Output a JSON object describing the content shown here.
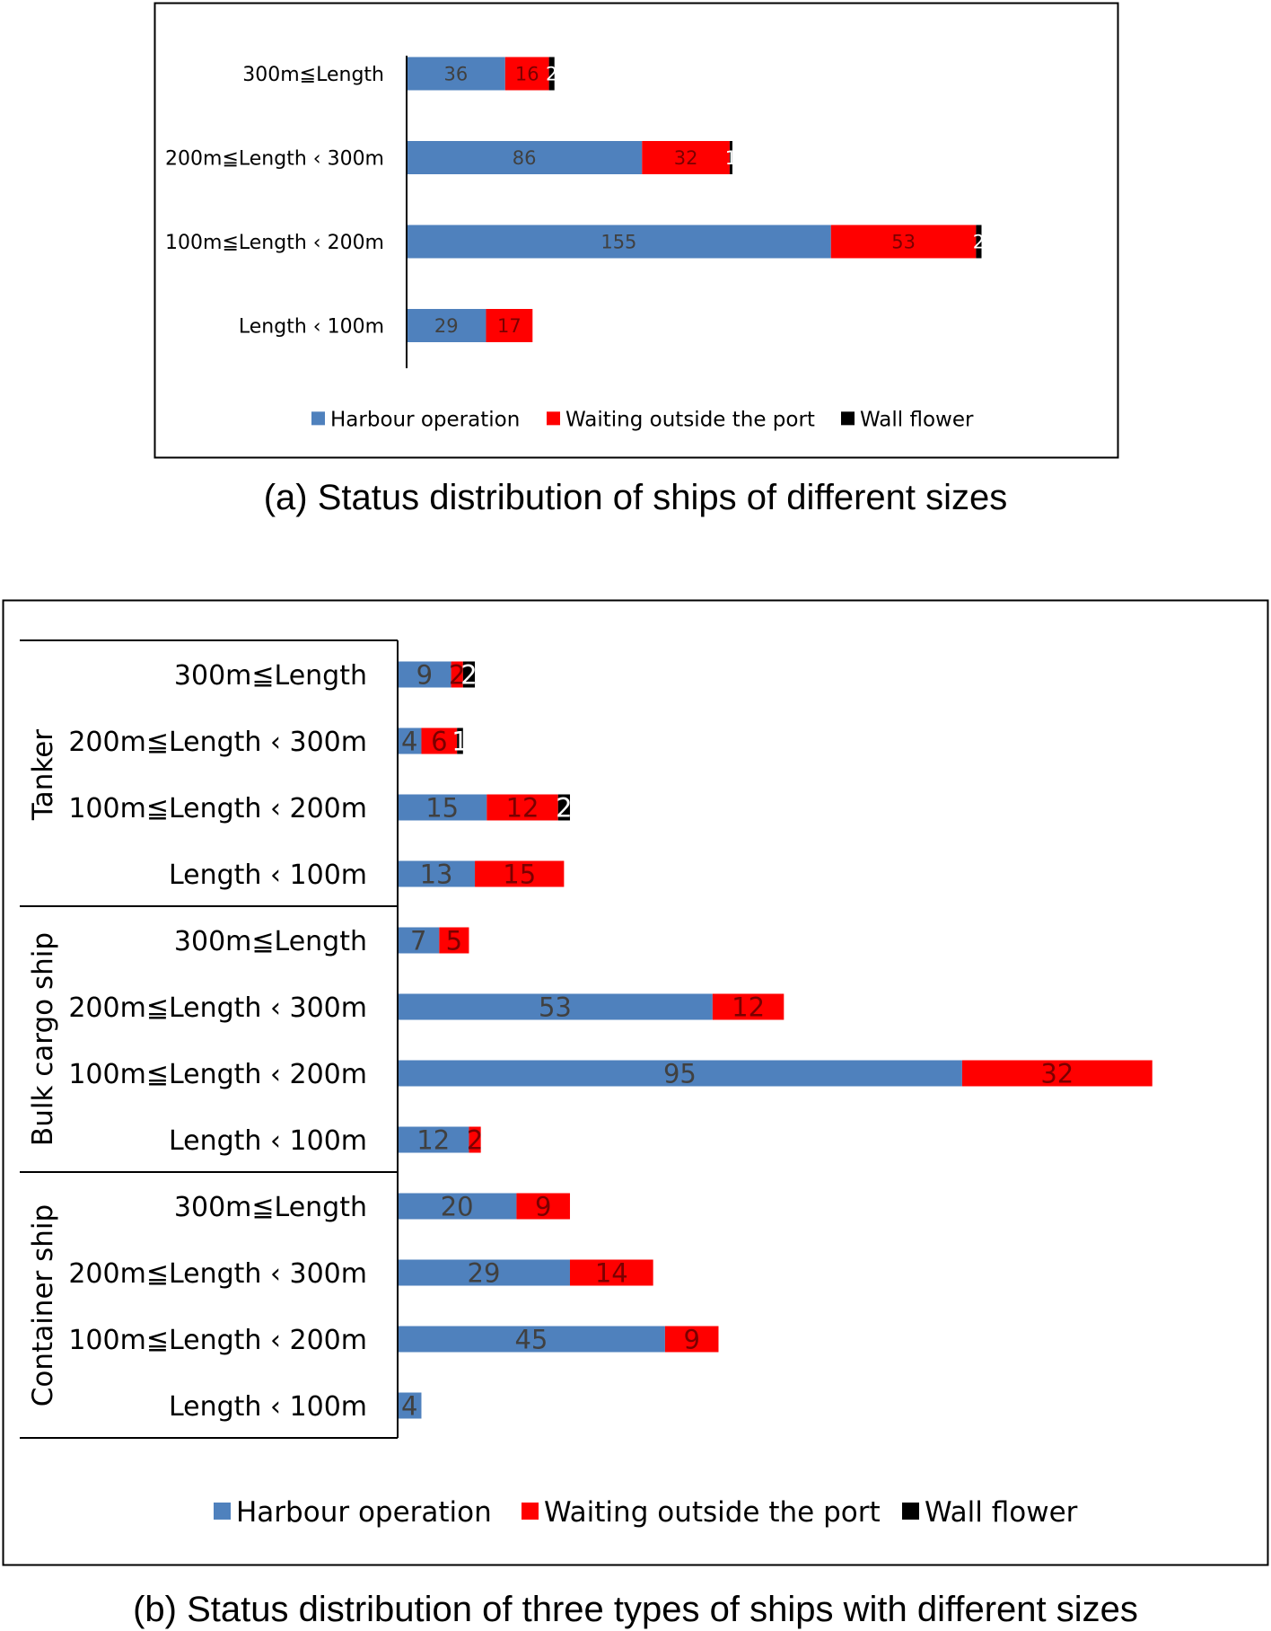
{
  "captions": {
    "a": "(a) Status distribution of ships of different sizes",
    "b": "(b) Status distribution of three types of ships with different sizes"
  },
  "legend": [
    "Harbour operation",
    "Waiting outside the port",
    "Wall flower"
  ],
  "colors": {
    "harbour": "#4f81bd",
    "waiting": "#ff0000",
    "wall": "#000000"
  },
  "chart_data": [
    {
      "type": "bar",
      "orientation": "horizontal",
      "stacked": true,
      "title": "(a) Status distribution of ships of different sizes",
      "categories": [
        "300m≦Length",
        "200m≦Length ‹ 300m",
        "100m≦Length ‹ 200m",
        "Length ‹ 100m"
      ],
      "series": [
        {
          "name": "Harbour operation",
          "values": [
            36,
            86,
            155,
            29
          ],
          "labels": [
            "36",
            "86",
            "155",
            "29"
          ]
        },
        {
          "name": "Waiting outside the port",
          "values": [
            16,
            32,
            53,
            17
          ],
          "labels": [
            "16",
            "32",
            "53",
            "17"
          ]
        },
        {
          "name": "Wall flower",
          "values": [
            2,
            1,
            2,
            0
          ],
          "labels": [
            "2",
            "1",
            "2",
            ""
          ]
        }
      ],
      "legend_position": "bottom",
      "grid": false
    },
    {
      "type": "bar",
      "orientation": "horizontal",
      "stacked": true,
      "title": "(b) Status distribution of three types of ships with different sizes",
      "groups": [
        {
          "name": "Tanker",
          "count": 4
        },
        {
          "name": "Bulk cargo ship",
          "count": 4
        },
        {
          "name": "Container ship",
          "count": 4
        }
      ],
      "categories": [
        "300m≦Length",
        "200m≦Length ‹ 300m",
        "100m≦Length ‹ 200m",
        "Length ‹ 100m",
        "300m≦Length",
        "200m≦Length ‹ 300m",
        "100m≦Length ‹ 200m",
        "Length ‹ 100m",
        "300m≦Length",
        "200m≦Length ‹ 300m",
        "100m≦Length ‹ 200m",
        "Length ‹ 100m"
      ],
      "series": [
        {
          "name": "Harbour operation",
          "values": [
            9,
            4,
            15,
            13,
            7,
            53,
            95,
            12,
            20,
            29,
            45,
            4
          ],
          "labels": [
            "9",
            "4",
            "15",
            "13",
            "7",
            "53",
            "95",
            "12",
            "20",
            "29",
            "45",
            "4"
          ]
        },
        {
          "name": "Waiting outside the port",
          "values": [
            2,
            6,
            12,
            15,
            5,
            12,
            32,
            2,
            9,
            14,
            9,
            0
          ],
          "labels": [
            "2",
            "6",
            "12",
            "15",
            "5",
            "12",
            "32",
            "2",
            "9",
            "14",
            "9",
            ""
          ]
        },
        {
          "name": "Wall flower",
          "values": [
            2,
            1,
            2,
            0,
            0,
            0,
            0,
            0,
            0,
            0,
            0,
            0
          ],
          "labels": [
            "2",
            "1",
            "2",
            "",
            "",
            "",
            "",
            "",
            "",
            "",
            "",
            ""
          ]
        }
      ],
      "legend_position": "bottom",
      "grid": false
    }
  ]
}
